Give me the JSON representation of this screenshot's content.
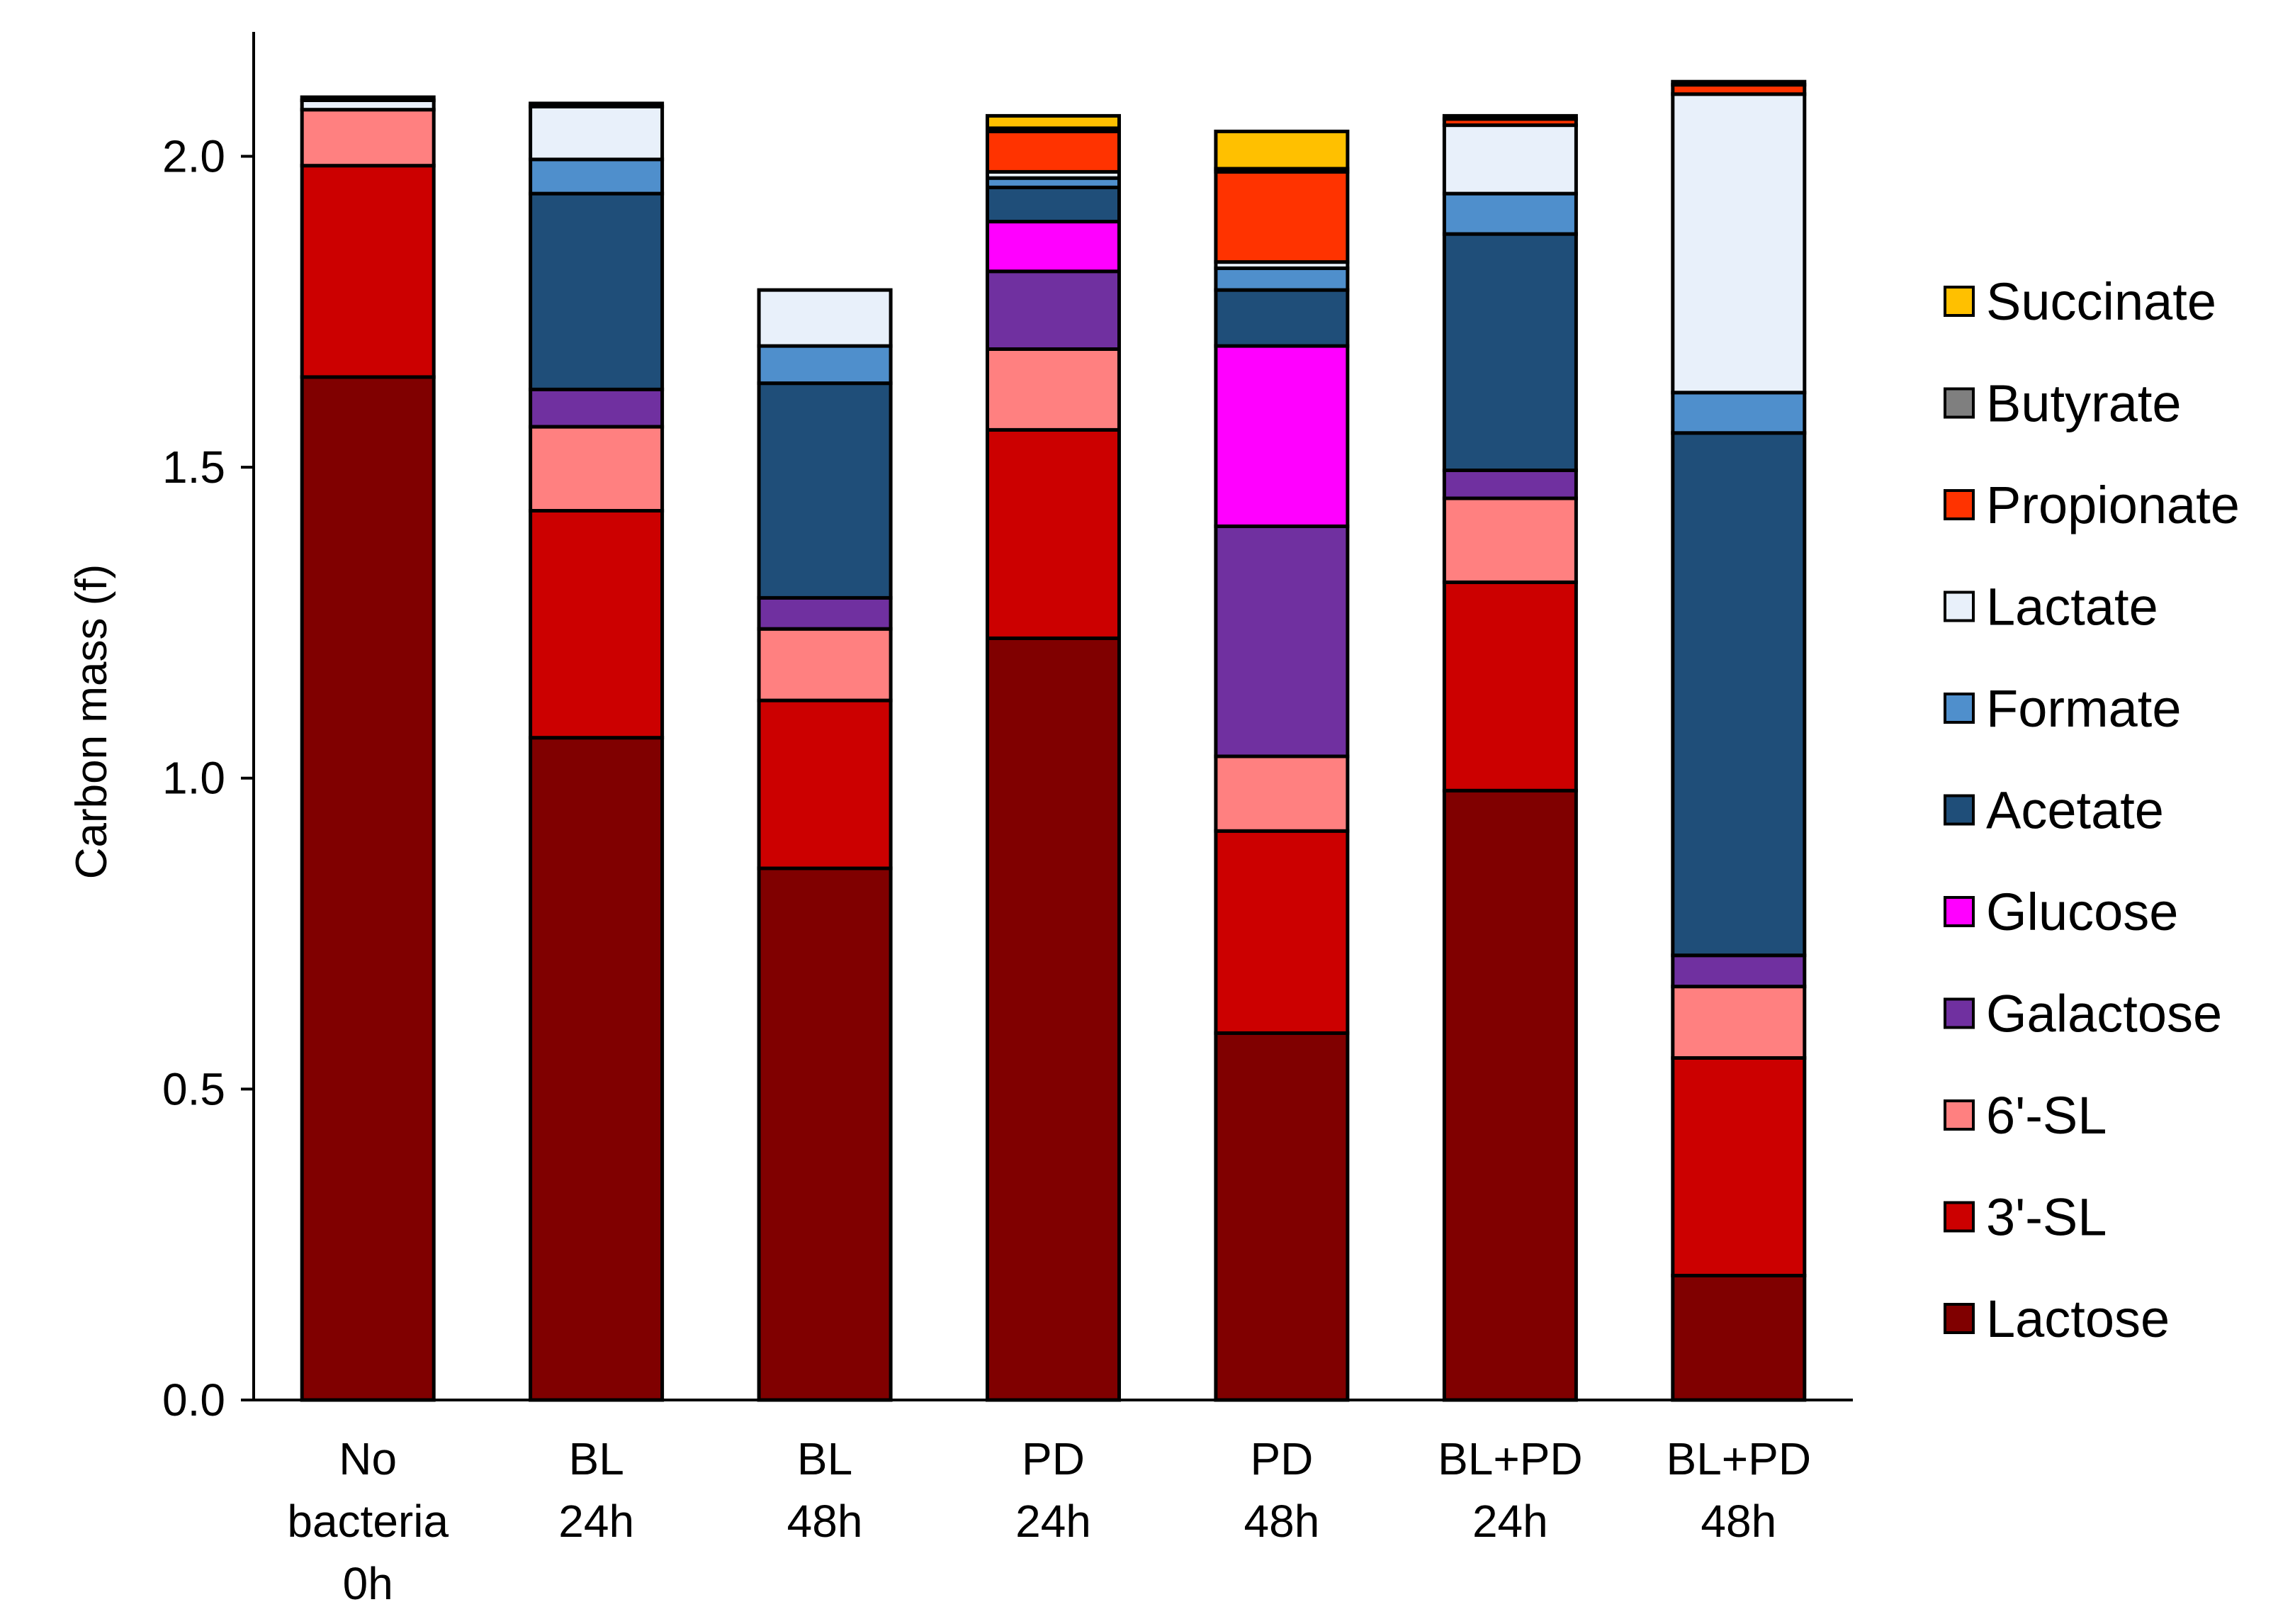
{
  "chart_data": {
    "type": "bar",
    "stacked": true,
    "ylabel": "Carbon mass (f)",
    "xlabel": "",
    "ylim": [
      0,
      2.2
    ],
    "yticks": [
      "0.0",
      "0.5",
      "1.0",
      "1.5",
      "2.0"
    ],
    "grid": false,
    "legend_position": "right",
    "categories": [
      [
        "No",
        "bacteria",
        "0h"
      ],
      [
        "BL",
        "24h"
      ],
      [
        "BL",
        "48h"
      ],
      [
        "PD",
        "24h"
      ],
      [
        "PD",
        "48h"
      ],
      [
        "BL+PD",
        "24h"
      ],
      [
        "BL+PD",
        "48h"
      ]
    ],
    "series": [
      {
        "name": "Lactose",
        "color": "#800000",
        "values": [
          1.645,
          1.065,
          0.855,
          1.225,
          0.59,
          0.98,
          0.2
        ]
      },
      {
        "name": "3'-SL",
        "color": "#cc0000",
        "values": [
          0.34,
          0.365,
          0.27,
          0.335,
          0.325,
          0.335,
          0.35
        ]
      },
      {
        "name": "6'-SL",
        "color": "#ff8080",
        "values": [
          0.09,
          0.135,
          0.115,
          0.13,
          0.12,
          0.135,
          0.115
        ]
      },
      {
        "name": "Galactose",
        "color": "#7030a0",
        "values": [
          0,
          0.06,
          0.05,
          0.125,
          0.37,
          0.045,
          0.05
        ]
      },
      {
        "name": "Glucose",
        "color": "#ff00ff",
        "values": [
          0,
          0,
          0,
          0.08,
          0.29,
          0,
          0
        ]
      },
      {
        "name": "Acetate",
        "color": "#1f4e79",
        "values": [
          0,
          0.315,
          0.345,
          0.055,
          0.09,
          0.38,
          0.84
        ]
      },
      {
        "name": "Formate",
        "color": "#4f8fcc",
        "values": [
          0,
          0.055,
          0.06,
          0.015,
          0.035,
          0.065,
          0.065
        ]
      },
      {
        "name": "Lactate",
        "color": "#e8f0fa",
        "values": [
          0.015,
          0.085,
          0.09,
          0.01,
          0.01,
          0.11,
          0.48
        ]
      },
      {
        "name": "Propionate",
        "color": "#ff3300",
        "values": [
          0,
          0,
          0,
          0.065,
          0.145,
          0.01,
          0.015
        ]
      },
      {
        "name": "Butyrate",
        "color": "#7f7f7f",
        "values": [
          0.005,
          0.005,
          0,
          0.005,
          0.005,
          0.005,
          0.005
        ]
      },
      {
        "name": "Succinate",
        "color": "#ffc000",
        "values": [
          0,
          0,
          0,
          0.02,
          0.06,
          0,
          0
        ]
      }
    ]
  }
}
